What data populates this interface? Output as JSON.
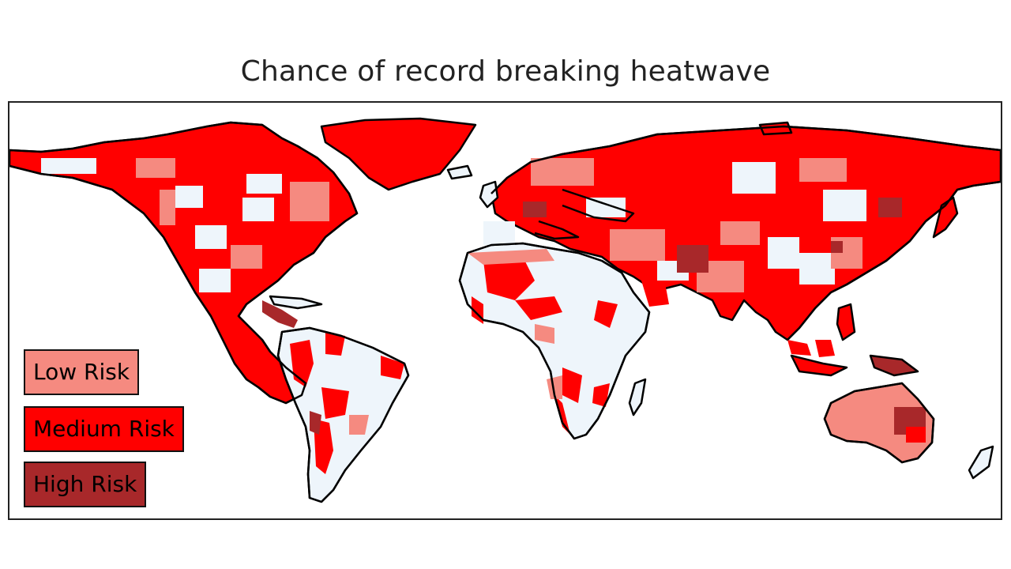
{
  "title": "Chance of record breaking heatwave",
  "legend": [
    {
      "label": "Low Risk",
      "color": "#f58a80"
    },
    {
      "label": "Medium Risk",
      "color": "#ff0000"
    },
    {
      "label": "High Risk",
      "color": "#a8282a"
    }
  ],
  "colors": {
    "no_risk_land": "#eef5fb",
    "ocean": "#ffffff",
    "coastline": "#000000"
  }
}
